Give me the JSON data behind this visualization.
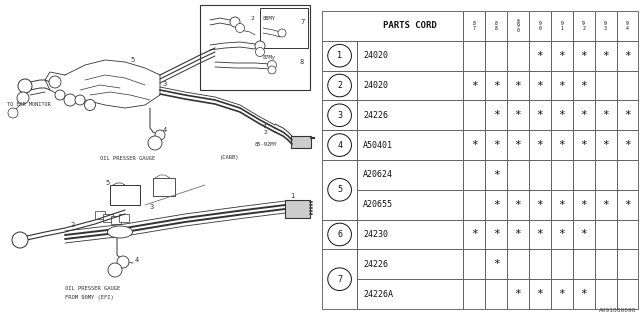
{
  "diagram_label": "A091000090",
  "table_header": "PARTS CORD",
  "year_cols": [
    "8\n7",
    "8\n8",
    "8\n9\n0",
    "9\n0",
    "9\n1",
    "9\n2",
    "9\n3",
    "9\n4"
  ],
  "rows": [
    {
      "part": "24020",
      "marks": [
        0,
        0,
        0,
        1,
        1,
        1,
        1,
        1
      ]
    },
    {
      "part": "24020",
      "marks": [
        1,
        1,
        1,
        1,
        1,
        1,
        0,
        0
      ]
    },
    {
      "part": "24226",
      "marks": [
        0,
        1,
        1,
        1,
        1,
        1,
        1,
        1
      ]
    },
    {
      "part": "A50401",
      "marks": [
        1,
        1,
        1,
        1,
        1,
        1,
        1,
        1
      ]
    },
    {
      "part": "A20624",
      "marks": [
        0,
        1,
        0,
        0,
        0,
        0,
        0,
        0
      ]
    },
    {
      "part": "A20655",
      "marks": [
        0,
        1,
        1,
        1,
        1,
        1,
        1,
        1
      ]
    },
    {
      "part": "24230",
      "marks": [
        1,
        1,
        1,
        1,
        1,
        1,
        0,
        0
      ]
    },
    {
      "part": "24226",
      "marks": [
        0,
        1,
        0,
        0,
        0,
        0,
        0,
        0
      ]
    },
    {
      "part": "24226A",
      "marks": [
        0,
        0,
        1,
        1,
        1,
        1,
        0,
        0
      ]
    }
  ],
  "groups": [
    {
      "num": "1",
      "rows": [
        0
      ]
    },
    {
      "num": "2",
      "rows": [
        1
      ]
    },
    {
      "num": "3",
      "rows": [
        2
      ]
    },
    {
      "num": "4",
      "rows": [
        3
      ]
    },
    {
      "num": "5",
      "rows": [
        4,
        5
      ]
    },
    {
      "num": "6",
      "rows": [
        6
      ]
    },
    {
      "num": "7",
      "rows": [
        7,
        8
      ]
    }
  ],
  "bg_color": "#ffffff",
  "text_color": "#111111",
  "grid_color": "#555555",
  "diag_color": "#333333",
  "font_size_table": 6,
  "font_size_yr": 4.0,
  "font_size_hdr": 6.5,
  "font_size_diag": 4.5
}
